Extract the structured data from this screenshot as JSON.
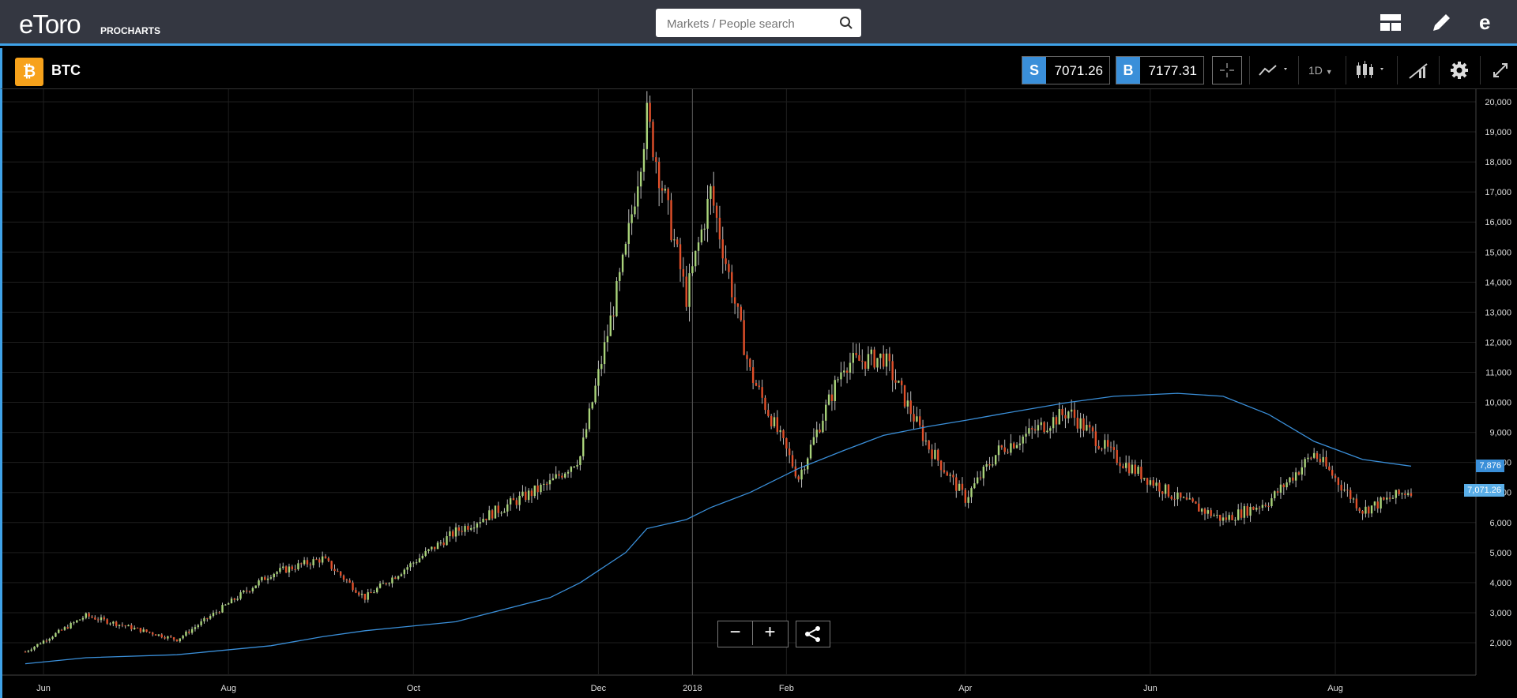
{
  "header": {
    "logo": "eToro",
    "logo_sub": "PROCHARTS",
    "search_placeholder": "Markets / People search"
  },
  "instrument": {
    "symbol": "BTC",
    "sell_tag": "S",
    "sell_price": "7071.26",
    "buy_tag": "B",
    "buy_price": "7177.31",
    "timeframe": "1D"
  },
  "chart": {
    "y_axis_labels": [
      "20,000",
      "19,000",
      "18,000",
      "17,000",
      "16,000",
      "15,000",
      "14,000",
      "13,000",
      "12,000",
      "11,000",
      "10,000",
      "9,000",
      "8,000",
      "7,000",
      "6,000",
      "5,000",
      "4,000",
      "3,000",
      "2,000"
    ],
    "x_axis_labels": [
      "Jun",
      "Aug",
      "Oct",
      "Dec",
      "2018",
      "Feb",
      "Apr",
      "Jun",
      "Aug"
    ],
    "ma_label": "7,876",
    "price_label": "7,071.26"
  },
  "chart_data": {
    "type": "candlestick",
    "series": [
      {
        "name": "BTC",
        "x": [
          "2017-05-26",
          "2017-06-15",
          "2017-07-15",
          "2017-08-15",
          "2017-09-01",
          "2017-09-15",
          "2017-10-15",
          "2017-11-15",
          "2017-11-25",
          "2017-12-10",
          "2017-12-17",
          "2017-12-30",
          "2018-01-07",
          "2018-01-20",
          "2018-02-05",
          "2018-02-20",
          "2018-03-05",
          "2018-03-20",
          "2018-04-01",
          "2018-04-12",
          "2018-05-05",
          "2018-05-20",
          "2018-06-10",
          "2018-06-25",
          "2018-07-10",
          "2018-07-25",
          "2018-08-10",
          "2018-08-26"
        ],
        "values": [
          1700,
          2900,
          2100,
          4300,
          4800,
          3500,
          5700,
          7300,
          8200,
          15000,
          19500,
          13500,
          17000,
          11000,
          7500,
          11300,
          11500,
          8500,
          6800,
          8400,
          9700,
          8200,
          6800,
          6100,
          6700,
          8300,
          6400,
          7100
        ]
      },
      {
        "name": "MA",
        "values": [
          1300,
          1500,
          1600,
          1900,
          2200,
          2400,
          2700,
          3500,
          4000,
          5000,
          5800,
          6100,
          6500,
          7000,
          7800,
          8400,
          8900,
          9200,
          9400,
          9600,
          10000,
          10200,
          10300,
          10200,
          9600,
          8700,
          8100,
          7876
        ]
      }
    ],
    "ylim": [
      1500,
      20200
    ],
    "grid": true
  }
}
